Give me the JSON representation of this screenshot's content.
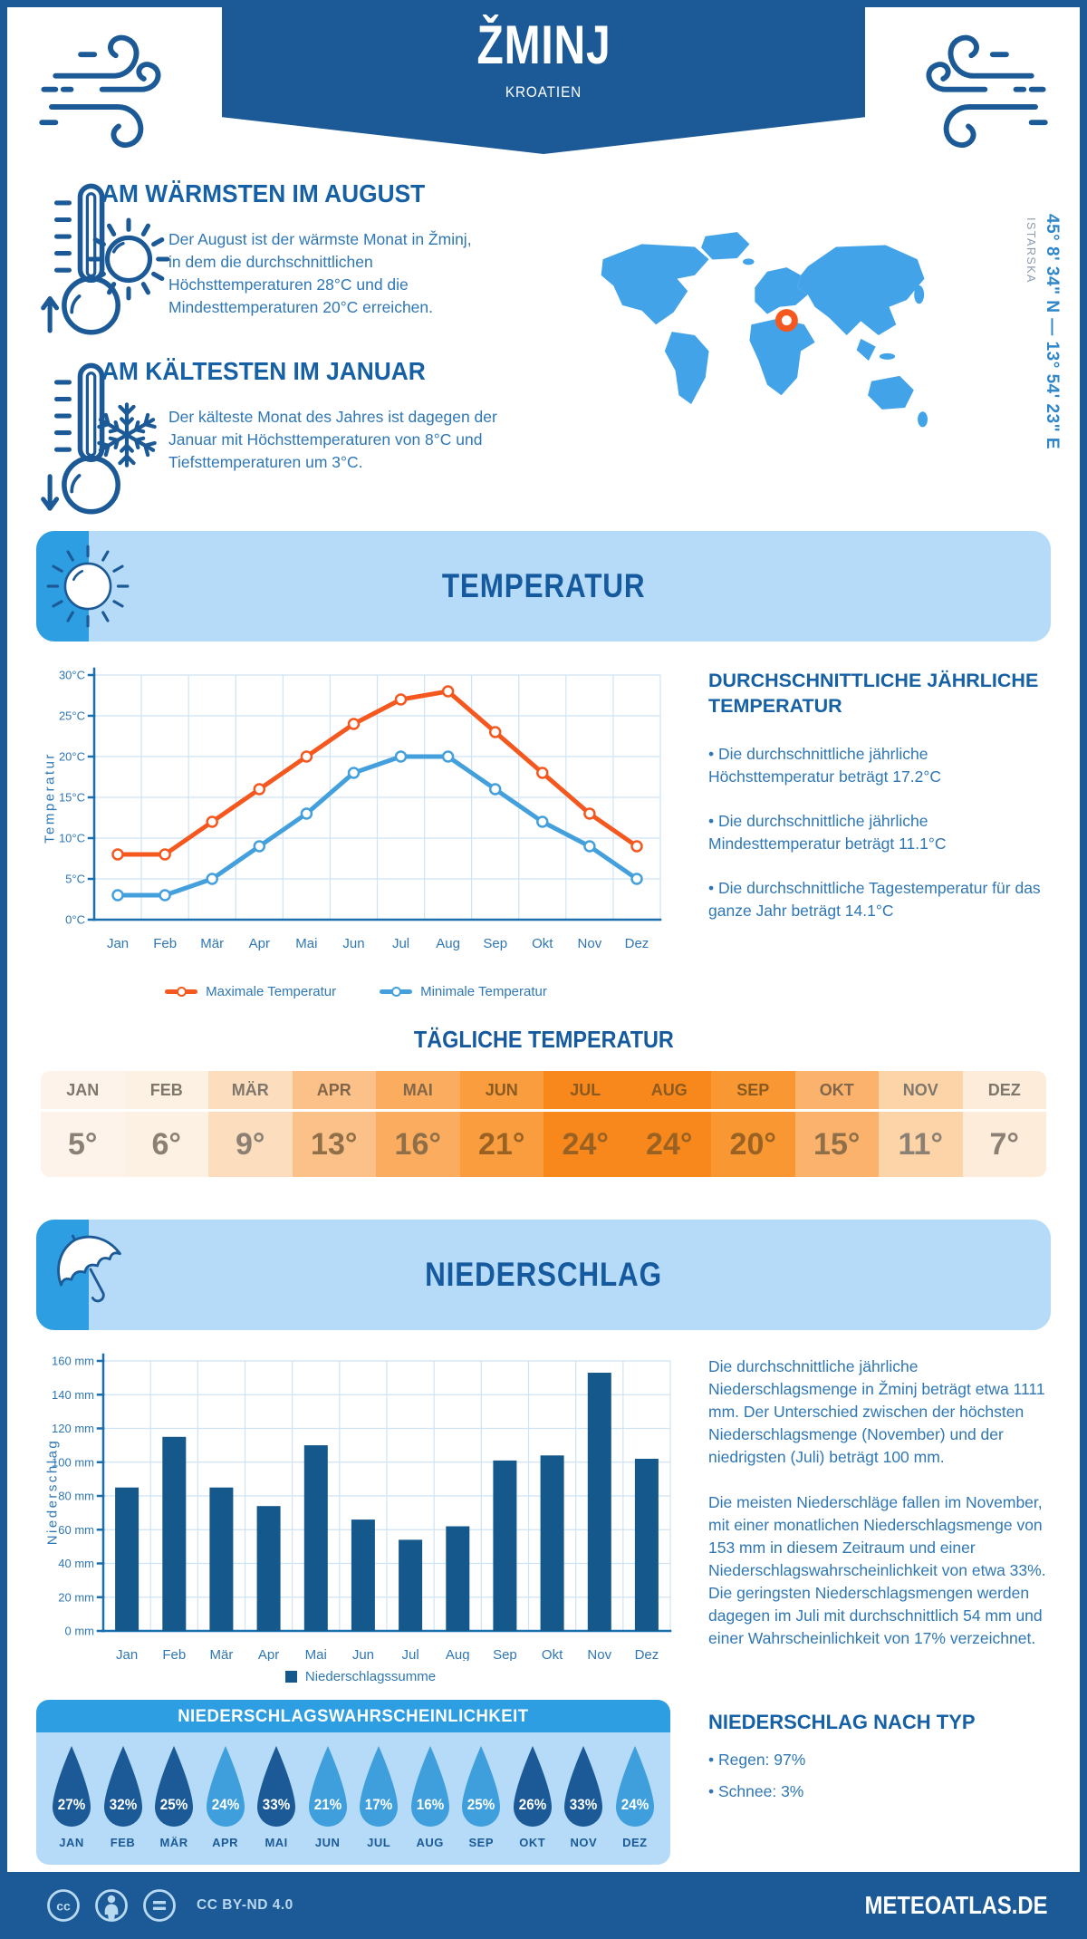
{
  "header": {
    "title": "ŽMINJ",
    "subtitle": "KROATIEN"
  },
  "location": {
    "coordinates": "45° 8' 34\" N — 13° 54' 23\" E",
    "region": "ISTARSKA"
  },
  "warmest": {
    "title": "AM WÄRMSTEN IM AUGUST",
    "text": "Der August ist der wärmste Monat in Žminj, in dem die durchschnittlichen Höchsttemperaturen 28°C und die Mindesttemperaturen 20°C erreichen."
  },
  "coldest": {
    "title": "AM KÄLTESTEN IM JANUAR",
    "text": "Der kälteste Monat des Jahres ist dagegen der Januar mit Höchsttemperaturen von 8°C und Tiefsttemperaturen um 3°C."
  },
  "temperature_section": {
    "banner": "TEMPERATUR",
    "annual_heading": "DURCHSCHNITTLICHE JÄHRLICHE TEMPERATUR",
    "bullets": [
      "• Die durchschnittliche jährliche Höchsttemperatur beträgt 17.2°C",
      "• Die durchschnittliche jährliche Mindesttemperatur beträgt 11.1°C",
      "• Die durchschnittliche Tagestemperatur für das ganze Jahr beträgt 14.1°C"
    ],
    "daily_title": "TÄGLICHE TEMPERATUR"
  },
  "precipitation_section": {
    "banner": "NIEDERSCHLAG",
    "paragraph1": "Die durchschnittliche jährliche Niederschlagsmenge in Žminj beträgt etwa 1111 mm. Der Unterschied zwischen der höchsten Niederschlagsmenge (November) und der niedrigsten (Juli) beträgt 100 mm.",
    "paragraph2": "Die meisten Niederschläge fallen im November, mit einer monatlichen Niederschlagsmenge von 153 mm in diesem Zeitraum und einer Niederschlagswahrscheinlichkeit von etwa 33%. Die geringsten Niederschlagsmengen werden dagegen im Juli mit durchschnittlich 54 mm und einer Wahrscheinlichkeit von 17% verzeichnet.",
    "type_heading": "NIEDERSCHLAG NACH TYP",
    "type_bullets": [
      "• Regen: 97%",
      "• Schnee: 3%"
    ]
  },
  "chart_data": [
    {
      "type": "line",
      "categories": [
        "Jan",
        "Feb",
        "Mär",
        "Apr",
        "Mai",
        "Jun",
        "Jul",
        "Aug",
        "Sep",
        "Okt",
        "Nov",
        "Dez"
      ],
      "series": [
        {
          "name": "Maximale Temperatur",
          "color": "#f4581f",
          "values": [
            8,
            8,
            12,
            16,
            20,
            24,
            27,
            28,
            23,
            18,
            13,
            9
          ]
        },
        {
          "name": "Minimale Temperatur",
          "color": "#43a0dd",
          "values": [
            3,
            3,
            5,
            9,
            13,
            18,
            20,
            20,
            16,
            12,
            9,
            5
          ]
        }
      ],
      "ylabel": "Temperatur",
      "xlabel": "",
      "ylim": [
        0,
        30
      ],
      "ytick_step": 5,
      "ytick_suffix": "°C",
      "grid": true,
      "legend_position": "bottom"
    },
    {
      "type": "table",
      "title": "TÄGLICHE TEMPERATUR",
      "categories": [
        "JAN",
        "FEB",
        "MÄR",
        "APR",
        "MAI",
        "JUN",
        "JUL",
        "AUG",
        "SEP",
        "OKT",
        "NOV",
        "DEZ"
      ],
      "values": [
        "5°",
        "6°",
        "9°",
        "13°",
        "16°",
        "21°",
        "24°",
        "24°",
        "20°",
        "15°",
        "11°",
        "7°"
      ],
      "numeric": [
        5,
        6,
        9,
        13,
        16,
        21,
        24,
        24,
        20,
        15,
        11,
        7
      ],
      "cell_colors": [
        "#fdf3ea",
        "#fdf1e4",
        "#fcdebe",
        "#fbc189",
        "#fbac5f",
        "#f99d3e",
        "#f8881c",
        "#f8881c",
        "#f99833",
        "#fbb26c",
        "#fcd4a7",
        "#fcecd9"
      ]
    },
    {
      "type": "bar",
      "name": "Niederschlagssumme",
      "color": "#14588c",
      "categories": [
        "Jan",
        "Feb",
        "Mär",
        "Apr",
        "Mai",
        "Jun",
        "Jul",
        "Aug",
        "Sep",
        "Okt",
        "Nov",
        "Dez"
      ],
      "values": [
        85,
        115,
        85,
        74,
        110,
        66,
        54,
        62,
        101,
        104,
        153,
        102
      ],
      "ylabel": "Niederschlag",
      "xlabel": "",
      "ylim": [
        0,
        160
      ],
      "ytick_step": 20,
      "ytick_suffix": " mm",
      "grid": true,
      "legend_position": "bottom"
    },
    {
      "type": "pictogram",
      "title": "NIEDERSCHLAGSWAHRSCHEINLICHKEIT",
      "categories": [
        "JAN",
        "FEB",
        "MÄR",
        "APR",
        "MAI",
        "JUN",
        "JUL",
        "AUG",
        "SEP",
        "OKT",
        "NOV",
        "DEZ"
      ],
      "values": [
        27,
        32,
        25,
        24,
        33,
        21,
        17,
        16,
        25,
        26,
        33,
        24
      ],
      "unit": "%",
      "variants": [
        "dark",
        "dark",
        "dark",
        "light",
        "dark",
        "light",
        "light",
        "light",
        "light",
        "dark",
        "dark",
        "light"
      ]
    }
  ],
  "footer": {
    "license": "CC BY-ND 4.0",
    "site": "METEOATLAS.DE"
  },
  "colors": {
    "navy": "#1b5a97",
    "medblue": "#2d9ee1",
    "lightblue": "#b5dbf8",
    "map": "#42a3e8",
    "marker": "#f4581f",
    "maxline": "#f4581f",
    "minline": "#43a0dd",
    "bar": "#14588c",
    "dropdark": "#1b5a97",
    "droplight": "#3f9fdc"
  }
}
